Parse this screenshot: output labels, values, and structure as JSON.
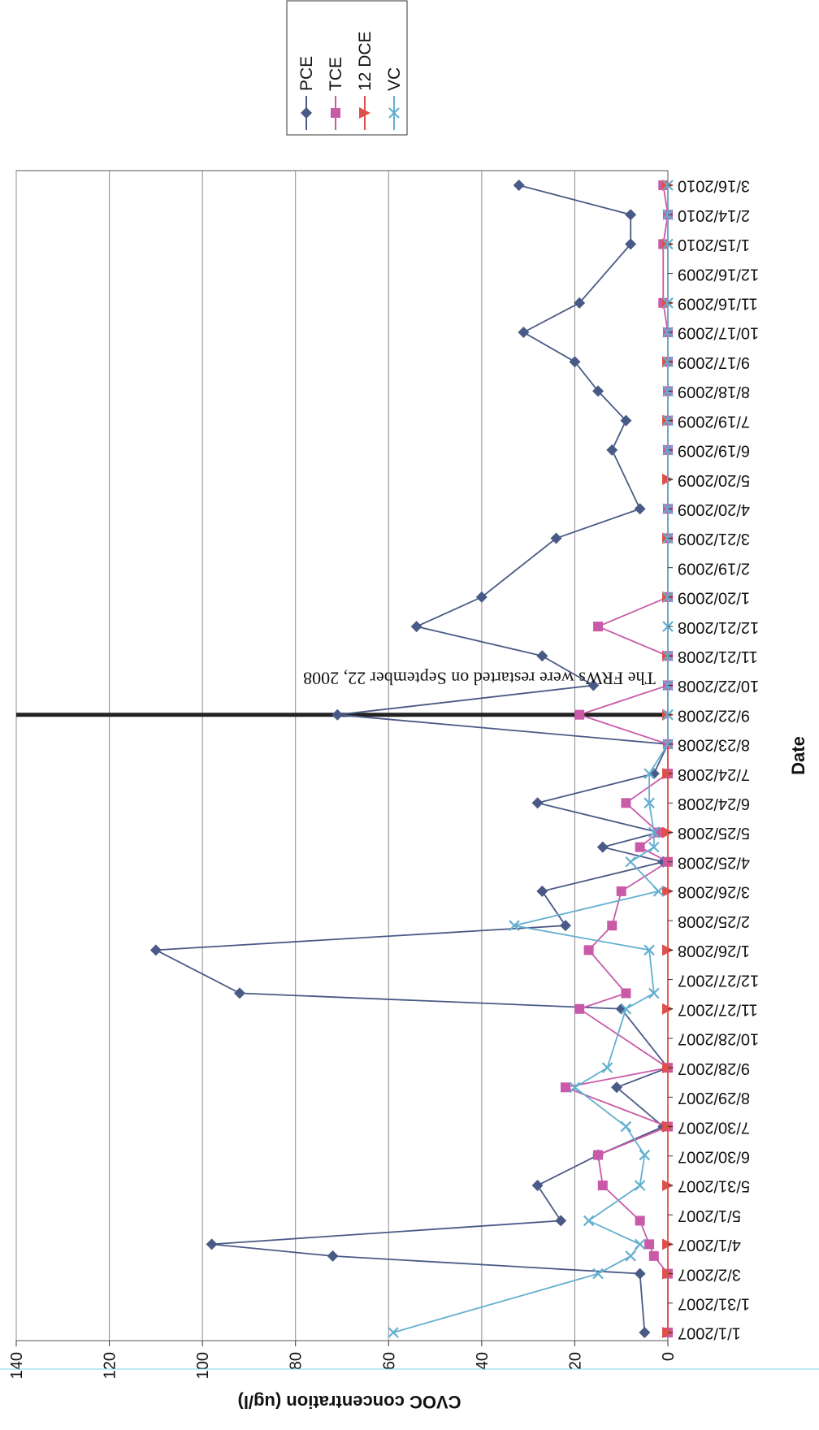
{
  "chart_data": {
    "type": "line",
    "title": "",
    "xlabel": "Date",
    "ylabel": "CVOC concentration (ug/l)",
    "ylim": [
      0,
      140
    ],
    "y_ticks": [
      0,
      20,
      40,
      60,
      80,
      100,
      120,
      140
    ],
    "x_tick_labels": [
      "1/1/2007",
      "1/31/2007",
      "3/2/2007",
      "4/1/2007",
      "5/1/2007",
      "5/31/2007",
      "6/30/2007",
      "7/30/2007",
      "8/29/2007",
      "9/28/2007",
      "10/28/2007",
      "11/27/2007",
      "12/27/2007",
      "1/26/2008",
      "2/25/2008",
      "3/26/2008",
      "4/25/2008",
      "5/25/2008",
      "6/24/2008",
      "7/24/2008",
      "8/23/2008",
      "9/22/2008",
      "10/22/2008",
      "11/21/2008",
      "12/21/2008",
      "1/20/2009",
      "2/19/2009",
      "3/21/2009",
      "4/20/2009",
      "5/20/2009",
      "6/19/2009",
      "7/19/2009",
      "8/18/2009",
      "9/17/2009",
      "10/17/2009",
      "11/16/2009",
      "12/16/2009",
      "1/15/2010",
      "2/14/2010",
      "3/16/2010"
    ],
    "grid": "horizontal",
    "legend_position": "top-right",
    "colors": {
      "PCE": "#4a5a86",
      "TCE": "#c85aa8",
      "12 DCE": "#e0504a",
      "VC": "#63afd0"
    },
    "markers": {
      "PCE": "diamond",
      "TCE": "square",
      "12 DCE": "triangle",
      "VC": "x"
    },
    "series": [
      {
        "name": "PCE",
        "points": [
          [
            "1/1/2007",
            5
          ],
          [
            "3/2/2007",
            6
          ],
          [
            "3/20/2007",
            72
          ],
          [
            "4/1/2007",
            98
          ],
          [
            "4/25/2007",
            23
          ],
          [
            "5/31/2007",
            28
          ],
          [
            "7/1/2007",
            15
          ],
          [
            "7/30/2007",
            1
          ],
          [
            "9/8/2007",
            11
          ],
          [
            "9/28/2007",
            0
          ],
          [
            "11/27/2007",
            10
          ],
          [
            "12/13/2007",
            92
          ],
          [
            "1/26/2008",
            110
          ],
          [
            "2/20/2008",
            22
          ],
          [
            "3/26/2008",
            27
          ],
          [
            "4/25/2008",
            1
          ],
          [
            "5/10/2008",
            14
          ],
          [
            "5/25/2008",
            2
          ],
          [
            "6/24/2008",
            28
          ],
          [
            "7/24/2008",
            3
          ],
          [
            "8/23/2008",
            0
          ],
          [
            "9/22/2008",
            71
          ],
          [
            "10/22/2008",
            16
          ],
          [
            "11/21/2008",
            27
          ],
          [
            "12/21/2008",
            54
          ],
          [
            "1/20/2009",
            40
          ],
          [
            "3/21/2009",
            24
          ],
          [
            "4/20/2009",
            6
          ],
          [
            "6/19/2009",
            12
          ],
          [
            "7/19/2009",
            9
          ],
          [
            "8/18/2009",
            15
          ],
          [
            "9/17/2009",
            20
          ],
          [
            "10/17/2009",
            31
          ],
          [
            "11/16/2009",
            19
          ],
          [
            "1/15/2010",
            8
          ],
          [
            "2/14/2010",
            8
          ],
          [
            "3/16/2010",
            32
          ]
        ]
      },
      {
        "name": "TCE",
        "points": [
          [
            "1/1/2007",
            0
          ],
          [
            "3/2/2007",
            0
          ],
          [
            "3/20/2007",
            3
          ],
          [
            "4/1/2007",
            4
          ],
          [
            "4/25/2007",
            6
          ],
          [
            "5/31/2007",
            14
          ],
          [
            "7/1/2007",
            15
          ],
          [
            "7/30/2007",
            0
          ],
          [
            "9/8/2007",
            22
          ],
          [
            "9/28/2007",
            0
          ],
          [
            "11/27/2007",
            19
          ],
          [
            "12/13/2007",
            9
          ],
          [
            "1/26/2008",
            17
          ],
          [
            "2/20/2008",
            12
          ],
          [
            "3/26/2008",
            10
          ],
          [
            "4/25/2008",
            0
          ],
          [
            "5/10/2008",
            6
          ],
          [
            "5/25/2008",
            2
          ],
          [
            "6/24/2008",
            9
          ],
          [
            "7/24/2008",
            0
          ],
          [
            "8/23/2008",
            0
          ],
          [
            "9/22/2008",
            19
          ],
          [
            "10/22/2008",
            0
          ],
          [
            "11/21/2008",
            0
          ],
          [
            "12/21/2008",
            15
          ],
          [
            "1/20/2009",
            0
          ],
          [
            "3/21/2009",
            0
          ],
          [
            "4/20/2009",
            0
          ],
          [
            "6/19/2009",
            0
          ],
          [
            "7/19/2009",
            0
          ],
          [
            "8/18/2009",
            0
          ],
          [
            "9/17/2009",
            0
          ],
          [
            "10/17/2009",
            0
          ],
          [
            "11/16/2009",
            1
          ],
          [
            "1/15/2010",
            1
          ],
          [
            "2/14/2010",
            0
          ],
          [
            "3/16/2010",
            1
          ]
        ]
      },
      {
        "name": "12 DCE",
        "points": [
          [
            "1/1/2007",
            0
          ],
          [
            "3/2/2007",
            0
          ],
          [
            "4/1/2007",
            0
          ],
          [
            "5/31/2007",
            0
          ],
          [
            "7/30/2007",
            0
          ],
          [
            "9/28/2007",
            0
          ],
          [
            "11/27/2007",
            0
          ],
          [
            "1/26/2008",
            0
          ],
          [
            "3/26/2008",
            0
          ],
          [
            "5/25/2008",
            0
          ],
          [
            "7/24/2008",
            0
          ],
          [
            "9/22/2008",
            0
          ],
          [
            "11/21/2008",
            0
          ],
          [
            "1/20/2009",
            0
          ],
          [
            "3/21/2009",
            0
          ],
          [
            "5/20/2009",
            0
          ],
          [
            "7/19/2009",
            0
          ],
          [
            "9/17/2009",
            0
          ],
          [
            "11/16/2009",
            0
          ],
          [
            "1/15/2010",
            0
          ],
          [
            "3/16/2010",
            0
          ]
        ]
      },
      {
        "name": "VC",
        "points": [
          [
            "1/1/2007",
            59
          ],
          [
            "3/2/2007",
            15
          ],
          [
            "3/20/2007",
            8
          ],
          [
            "4/1/2007",
            6
          ],
          [
            "4/25/2007",
            17
          ],
          [
            "5/31/2007",
            6
          ],
          [
            "7/1/2007",
            5
          ],
          [
            "7/30/2007",
            9
          ],
          [
            "9/8/2007",
            20
          ],
          [
            "9/28/2007",
            13
          ],
          [
            "11/27/2007",
            9
          ],
          [
            "12/13/2007",
            3
          ],
          [
            "1/26/2008",
            4
          ],
          [
            "2/20/2008",
            33
          ],
          [
            "3/26/2008",
            2
          ],
          [
            "4/25/2008",
            8
          ],
          [
            "5/10/2008",
            3
          ],
          [
            "5/25/2008",
            3
          ],
          [
            "6/24/2008",
            4
          ],
          [
            "7/24/2008",
            4
          ],
          [
            "8/23/2008",
            0
          ],
          [
            "9/22/2008",
            0
          ],
          [
            "10/22/2008",
            0
          ],
          [
            "11/21/2008",
            0
          ],
          [
            "12/21/2008",
            0
          ],
          [
            "1/20/2009",
            0
          ],
          [
            "3/21/2009",
            0
          ],
          [
            "4/20/2009",
            0
          ],
          [
            "6/19/2009",
            0
          ],
          [
            "7/19/2009",
            0
          ],
          [
            "8/18/2009",
            0
          ],
          [
            "9/17/2009",
            0
          ],
          [
            "10/17/2009",
            0
          ],
          [
            "11/16/2009",
            0
          ],
          [
            "1/15/2010",
            0
          ],
          [
            "2/14/2010",
            0
          ],
          [
            "3/16/2010",
            0
          ]
        ]
      }
    ],
    "annotations": [
      {
        "text": "The FRWs were restarted on September 22, 2008",
        "date": "9/22/2008"
      }
    ]
  }
}
